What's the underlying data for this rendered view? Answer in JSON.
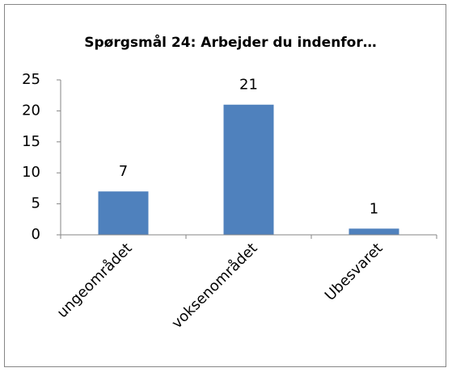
{
  "chart_data": {
    "type": "bar",
    "title": "Spørgsmål 24: Arbejder du indenfor…",
    "categories": [
      "ungeområdet",
      "voksenområdet",
      "Ubesvaret"
    ],
    "values": [
      7,
      21,
      1
    ],
    "color": "#4f81bd",
    "ylim": [
      0,
      25
    ],
    "yticks": [
      0,
      5,
      10,
      15,
      20,
      25
    ],
    "grid": false,
    "data_labels": true
  }
}
